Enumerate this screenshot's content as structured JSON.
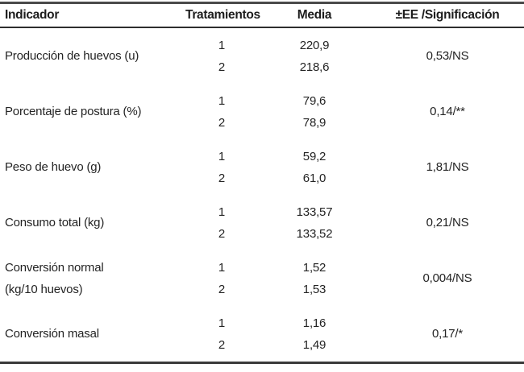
{
  "table": {
    "headers": {
      "indicator": "Indicador",
      "treatments": "Tratamientos",
      "media": "Media",
      "significance": "±EE /Significación"
    },
    "rows": [
      {
        "indicator": "Producción de huevos (u)",
        "treatments": [
          "1",
          "2"
        ],
        "medias": [
          "220,9",
          "218,6"
        ],
        "sig": "0,53/NS"
      },
      {
        "indicator": "Porcentaje de postura (%)",
        "treatments": [
          "1",
          "2"
        ],
        "medias": [
          "79,6",
          "78,9"
        ],
        "sig": "0,14/**"
      },
      {
        "indicator": "Peso de huevo (g)",
        "treatments": [
          "1",
          "2"
        ],
        "medias": [
          "59,2",
          "61,0"
        ],
        "sig": "1,81/NS"
      },
      {
        "indicator": "Consumo total (kg)",
        "treatments": [
          "1",
          "2"
        ],
        "medias": [
          "133,57",
          "133,52"
        ],
        "sig": "0,21/NS"
      },
      {
        "indicator": "Conversión normal",
        "indicator_line2": "(kg/10 huevos)",
        "treatments": [
          "1",
          "2"
        ],
        "medias": [
          "1,52",
          "1,53"
        ],
        "sig": "0,004/NS"
      },
      {
        "indicator": "Conversión masal",
        "treatments": [
          "1",
          "2"
        ],
        "medias": [
          "1,16",
          "1,49"
        ],
        "sig": "0,17/*"
      }
    ]
  },
  "colors": {
    "background": "#ffffff",
    "text": "#242424",
    "rule": "#3a3a3a"
  }
}
